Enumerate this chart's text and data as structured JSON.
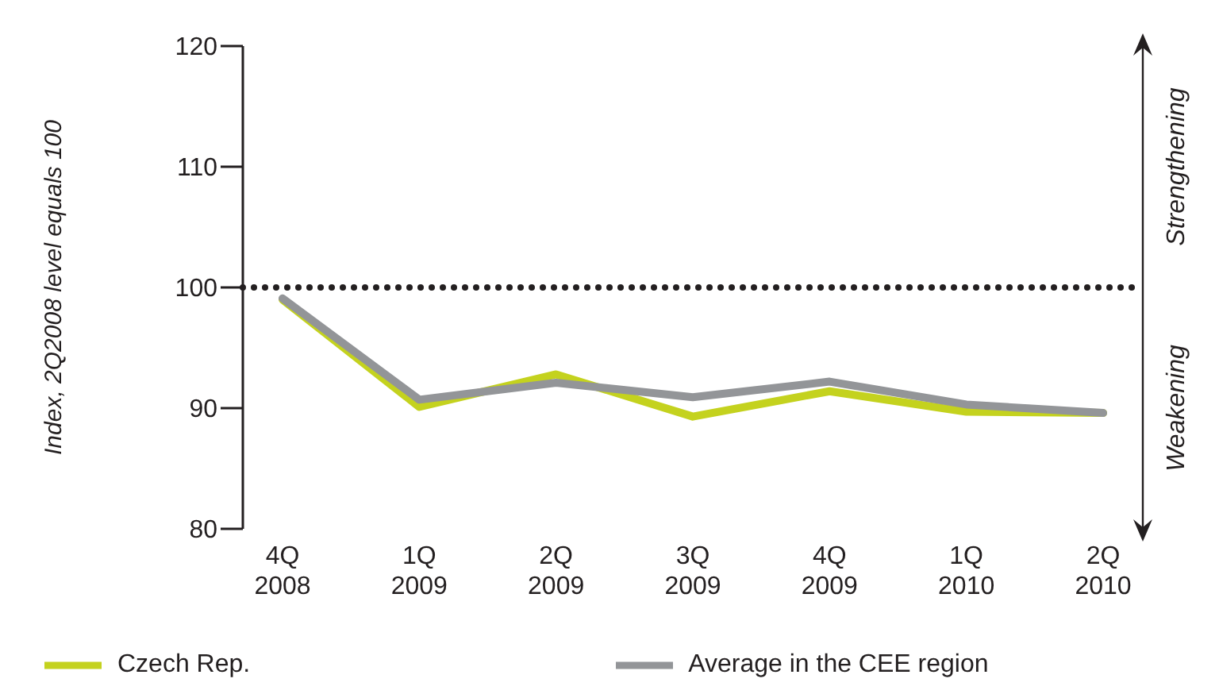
{
  "chart_data": {
    "type": "line",
    "ylabel": "Index, 2Q2008 level equals 100",
    "categories": [
      "4Q 2008",
      "1Q 2009",
      "2Q 2009",
      "3Q 2009",
      "4Q 2009",
      "1Q 2010",
      "2Q 2010"
    ],
    "series": [
      {
        "name": "Average in the CEE region",
        "color": "#939598",
        "values": [
          99.1,
          90.7,
          92.1,
          90.9,
          92.2,
          90.3,
          89.6
        ]
      },
      {
        "name": "Czech Rep.",
        "color": "#c4d21e",
        "values": [
          99.0,
          90.1,
          92.8,
          89.3,
          91.4,
          89.7,
          89.6
        ]
      }
    ],
    "ylim": [
      80,
      120
    ],
    "yticks": [
      80,
      90,
      100,
      110,
      120
    ],
    "grid": false,
    "legend": "bottom",
    "marker": "none",
    "line_style": "solid",
    "ref_lines": [
      {
        "axis": "y",
        "value": 100,
        "color": "#231f20",
        "line_style": "dotted"
      }
    ],
    "annotations": [
      "Strengthening",
      "Weakening"
    ]
  }
}
